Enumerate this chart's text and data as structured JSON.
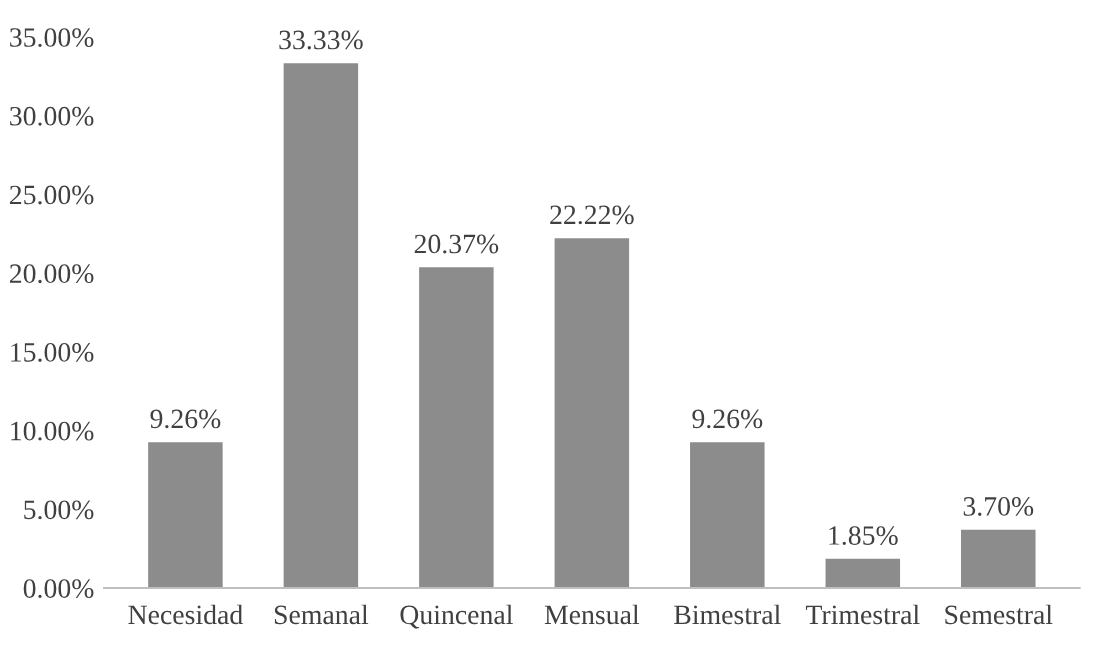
{
  "chart_data": {
    "type": "bar",
    "categories": [
      "Necesidad",
      "Semanal",
      "Quincenal",
      "Mensual",
      "Bimestral",
      "Trimestral",
      "Semestral"
    ],
    "values": [
      9.26,
      33.33,
      20.37,
      22.22,
      9.26,
      1.85,
      3.7
    ],
    "value_labels": [
      "9.26%",
      "33.33%",
      "20.37%",
      "22.22%",
      "9.26%",
      "1.85%",
      "3.70%"
    ],
    "color": "#8c8c8c",
    "ylim": [
      0,
      35
    ],
    "yticks": [
      {
        "value": 0,
        "label": "0.00%"
      },
      {
        "value": 5,
        "label": "5.00%"
      },
      {
        "value": 10,
        "label": "10.00%"
      },
      {
        "value": 15,
        "label": "15.00%"
      },
      {
        "value": 20,
        "label": "20.00%"
      },
      {
        "value": 25,
        "label": "25.00%"
      },
      {
        "value": 30,
        "label": "30.00%"
      },
      {
        "value": 35,
        "label": "35.00%"
      }
    ],
    "grid": false,
    "legend": false
  }
}
